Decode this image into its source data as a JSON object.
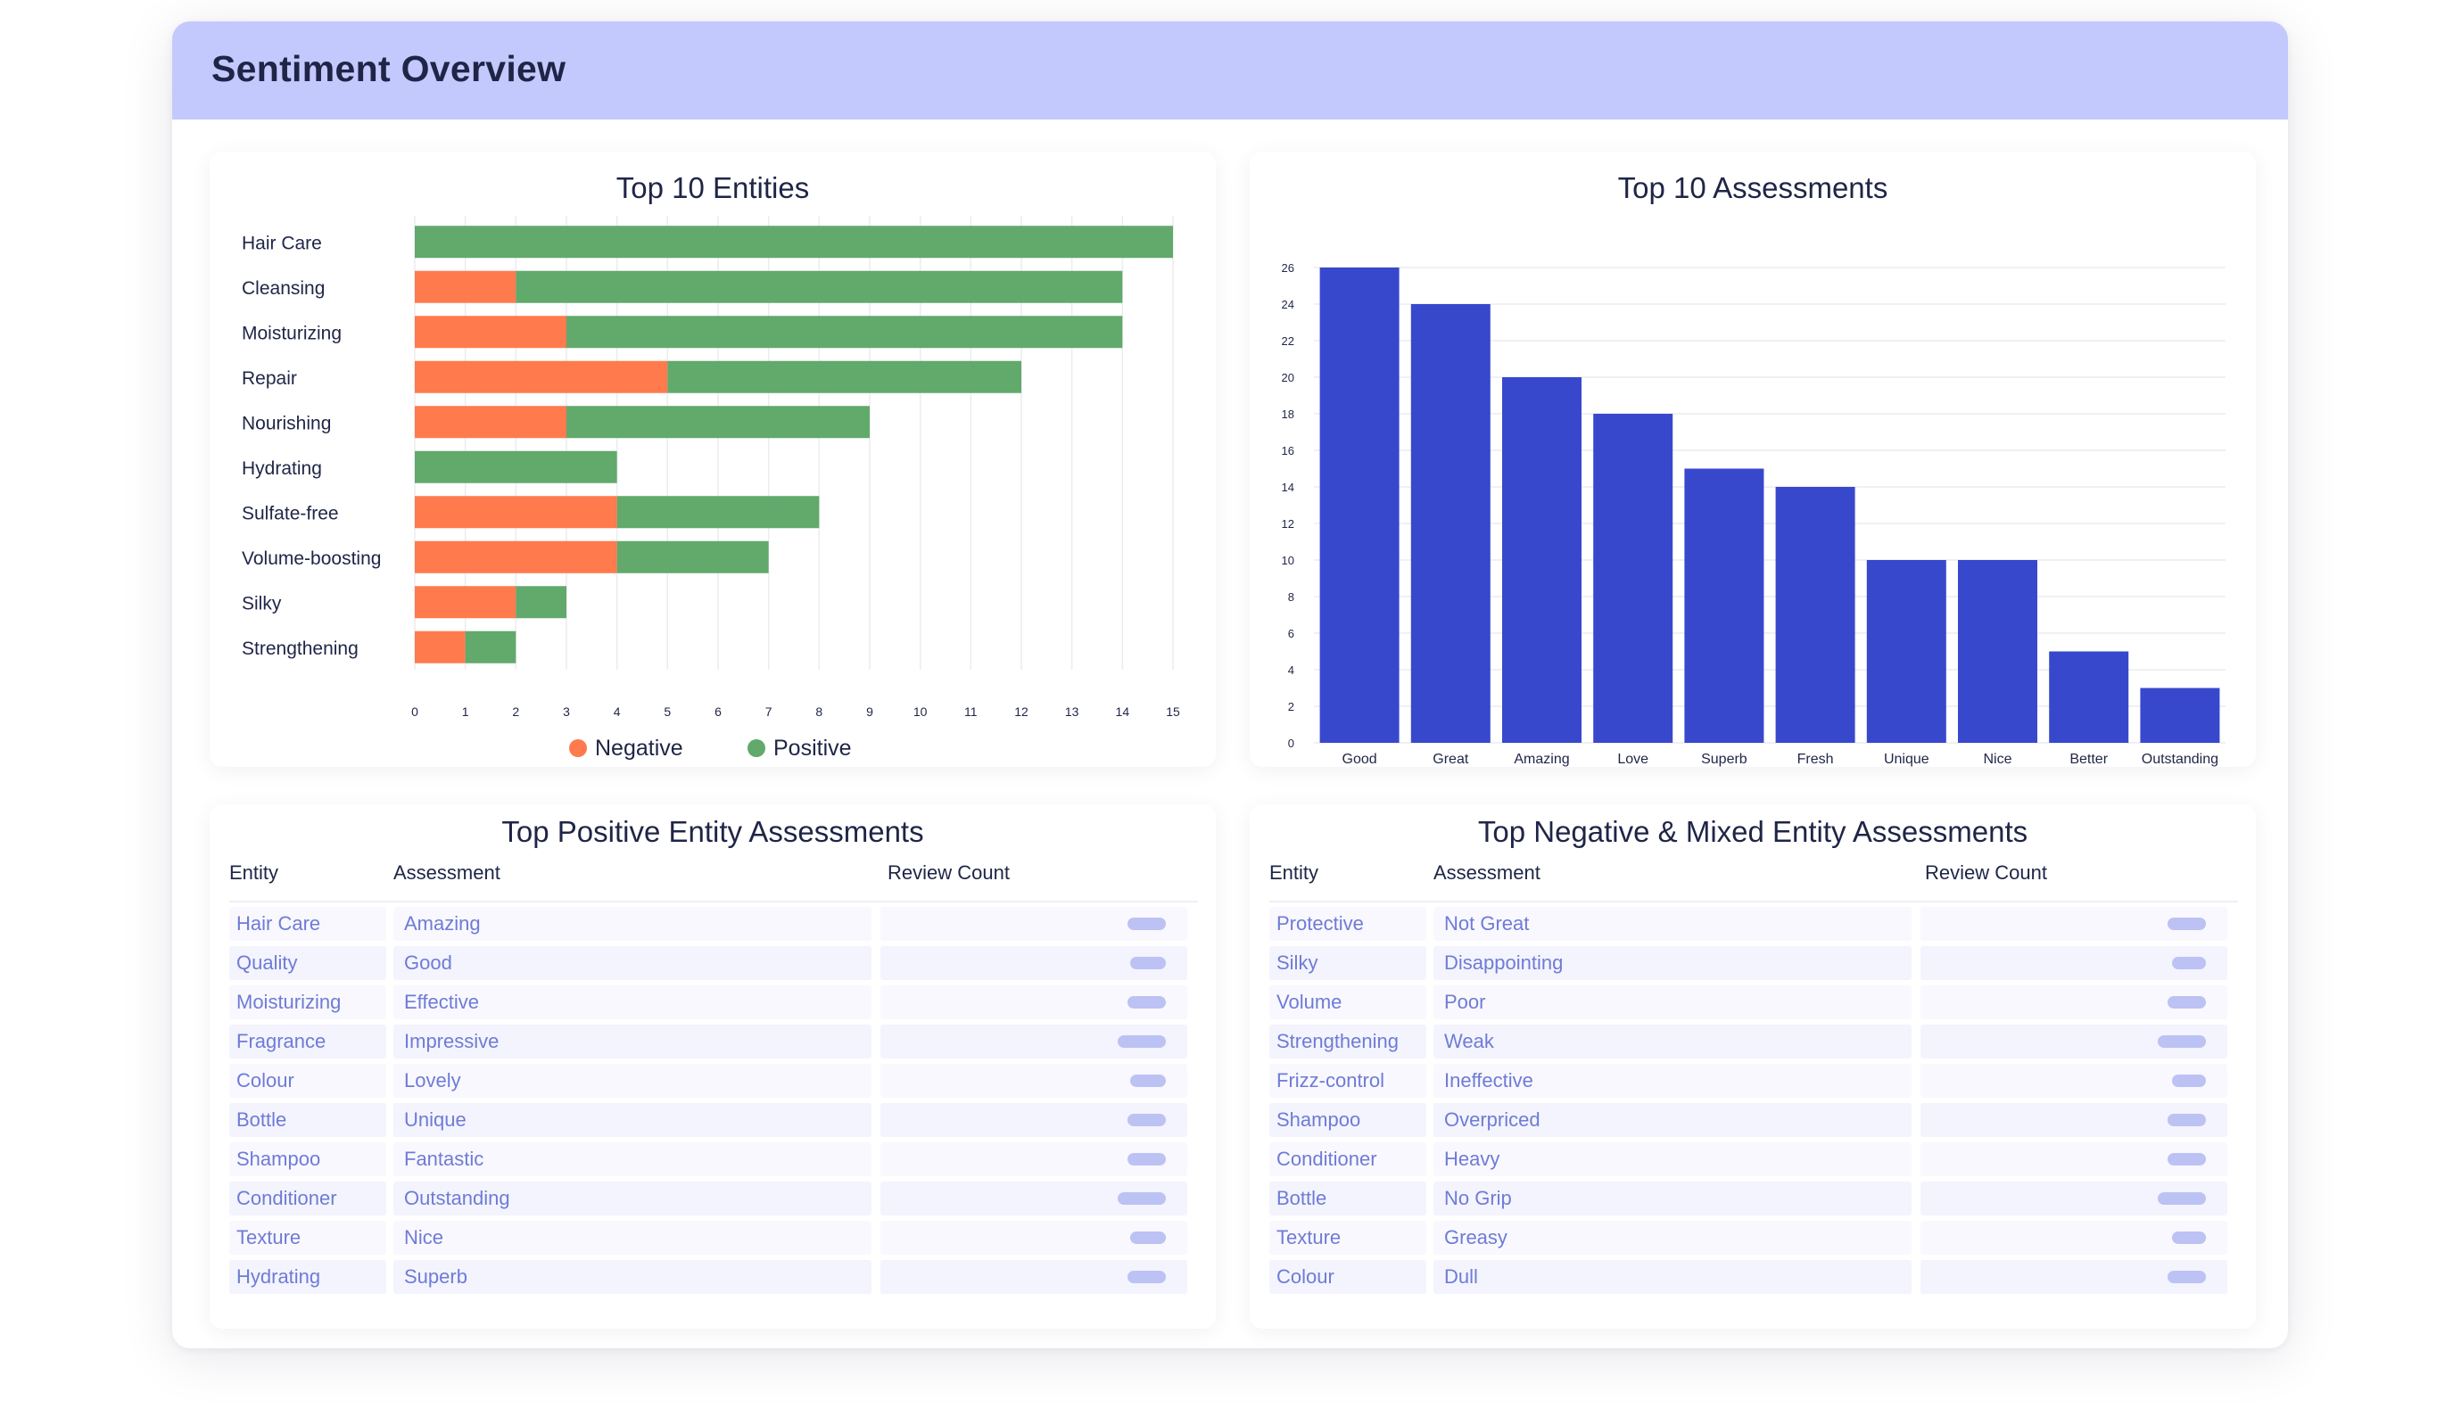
{
  "page": {
    "title": "Sentiment Overview"
  },
  "colors": {
    "negative": "#ff7a4d",
    "positive": "#62a96c",
    "assessment_bar": "#3848cc",
    "header_bg": "#c4c9fd"
  },
  "chart_data": [
    {
      "type": "bar",
      "orientation": "horizontal",
      "stacked": true,
      "title": "Top 10 Entities",
      "categories": [
        "Hair Care",
        "Cleansing",
        "Moisturizing",
        "Repair",
        "Nourishing",
        "Hydrating",
        "Sulfate-free",
        "Volume-boosting",
        "Silky",
        "Strengthening"
      ],
      "series": [
        {
          "name": "Negative",
          "values": [
            0,
            2,
            3,
            5,
            3,
            0,
            4,
            4,
            2,
            1
          ]
        },
        {
          "name": "Positive",
          "values": [
            15,
            12,
            11,
            7,
            6,
            4,
            4,
            3,
            1,
            1
          ]
        }
      ],
      "xlim": [
        0,
        15
      ],
      "xticks": [
        "0",
        "1",
        "2",
        "3",
        "4",
        "5",
        "6",
        "7",
        "8",
        "9",
        "10",
        "11",
        "12",
        "13",
        "14",
        "15"
      ],
      "grid": "vertical",
      "legend": "bottom-center"
    },
    {
      "type": "bar",
      "title": "Top 10 Assessments",
      "categories": [
        "Good",
        "Great",
        "Amazing",
        "Love",
        "Superb",
        "Fresh",
        "Unique",
        "Nice",
        "Better",
        "Outstanding"
      ],
      "values": [
        26,
        24,
        20,
        18,
        15,
        14,
        10,
        10,
        5,
        3
      ],
      "ylim": [
        0,
        26
      ],
      "yticks": [
        "0",
        "2",
        "4",
        "6",
        "8",
        "10",
        "12",
        "14",
        "16",
        "18",
        "20",
        "22",
        "24",
        "26"
      ],
      "grid": "horizontal"
    }
  ],
  "positive_table": {
    "title": "Top Positive Entity Assessments",
    "headers": {
      "entity": "Entity",
      "assessment": "Assessment",
      "count": "Review Count"
    },
    "rows": [
      {
        "entity": "Hair Care",
        "assessment": "Amazing",
        "count_fill": 0.8
      },
      {
        "entity": "Quality",
        "assessment": "Good",
        "count_fill": 0.75
      },
      {
        "entity": "Moisturizing",
        "assessment": "Effective",
        "count_fill": 0.8
      },
      {
        "entity": "Fragrance",
        "assessment": "Impressive",
        "count_fill": 1.0
      },
      {
        "entity": "Colour",
        "assessment": "Lovely",
        "count_fill": 0.75
      },
      {
        "entity": "Bottle",
        "assessment": "Unique",
        "count_fill": 0.8
      },
      {
        "entity": "Shampoo",
        "assessment": "Fantastic",
        "count_fill": 0.8
      },
      {
        "entity": "Conditioner",
        "assessment": "Outstanding",
        "count_fill": 1.0
      },
      {
        "entity": "Texture",
        "assessment": "Nice",
        "count_fill": 0.75
      },
      {
        "entity": "Hydrating",
        "assessment": "Superb",
        "count_fill": 0.8
      }
    ]
  },
  "negative_table": {
    "title": "Top Negative & Mixed Entity Assessments",
    "headers": {
      "entity": "Entity",
      "assessment": "Assessment",
      "count": "Review Count"
    },
    "rows": [
      {
        "entity": "Protective",
        "assessment": "Not Great",
        "count_fill": 0.8
      },
      {
        "entity": "Silky",
        "assessment": "Disappointing",
        "count_fill": 0.7
      },
      {
        "entity": "Volume",
        "assessment": "Poor",
        "count_fill": 0.8
      },
      {
        "entity": "Strengthening",
        "assessment": "Weak",
        "count_fill": 1.0
      },
      {
        "entity": "Frizz-control",
        "assessment": "Ineffective",
        "count_fill": 0.7
      },
      {
        "entity": "Shampoo",
        "assessment": "Overpriced",
        "count_fill": 0.8
      },
      {
        "entity": "Conditioner",
        "assessment": "Heavy",
        "count_fill": 0.8
      },
      {
        "entity": "Bottle",
        "assessment": "No Grip",
        "count_fill": 1.0
      },
      {
        "entity": "Texture",
        "assessment": "Greasy",
        "count_fill": 0.7
      },
      {
        "entity": "Colour",
        "assessment": "Dull",
        "count_fill": 0.8
      }
    ]
  }
}
